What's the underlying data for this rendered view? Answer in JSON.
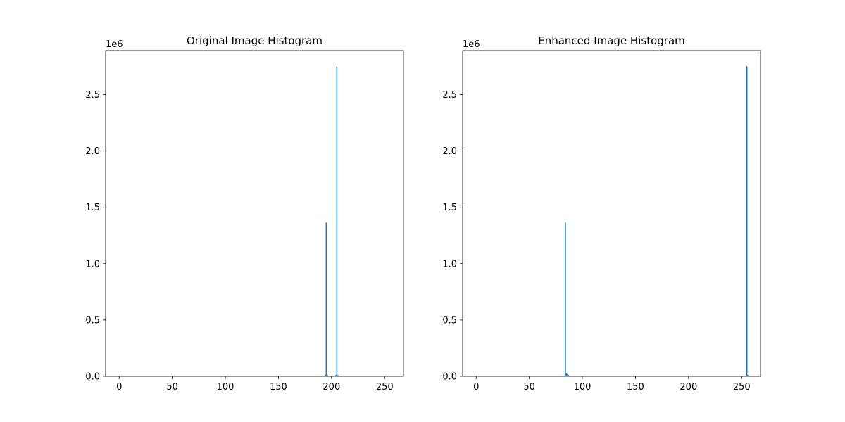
{
  "chart_data": [
    {
      "type": "bar",
      "title": "Original Image Histogram",
      "xlabel": "",
      "ylabel": "",
      "xlim": [
        -12.75,
        267.75
      ],
      "ylim": [
        0,
        2890000
      ],
      "x_ticks": [
        0,
        50,
        100,
        150,
        200,
        250
      ],
      "y_ticks": [
        0,
        500000,
        1000000,
        1500000,
        2000000,
        2500000
      ],
      "y_tick_labels": [
        "0.0",
        "0.5",
        "1.0",
        "1.5",
        "2.0",
        "2.5"
      ],
      "y_offset_label": "1e6",
      "grid": false,
      "color": "#1f77b4",
      "bars": [
        {
          "x": 194,
          "value": 12000
        },
        {
          "x": 195,
          "value": 1365000
        },
        {
          "x": 196,
          "value": 15000
        },
        {
          "x": 204,
          "value": 12000
        },
        {
          "x": 205,
          "value": 2750000
        },
        {
          "x": 206,
          "value": 10000
        }
      ]
    },
    {
      "type": "bar",
      "title": "Enhanced Image Histogram",
      "xlabel": "",
      "ylabel": "",
      "xlim": [
        -12.75,
        267.75
      ],
      "ylim": [
        0,
        2890000
      ],
      "x_ticks": [
        0,
        50,
        100,
        150,
        200,
        250
      ],
      "y_ticks": [
        0,
        500000,
        1000000,
        1500000,
        2000000,
        2500000
      ],
      "y_tick_labels": [
        "0.0",
        "0.5",
        "1.0",
        "1.5",
        "2.0",
        "2.5"
      ],
      "y_offset_label": "1e6",
      "grid": false,
      "color": "#1f77b4",
      "bars": [
        {
          "x": 0,
          "value": 3000
        },
        {
          "x": 84,
          "value": 1365000
        },
        {
          "x": 85,
          "value": 25000
        },
        {
          "x": 86,
          "value": 20000
        },
        {
          "x": 87,
          "value": 12000
        },
        {
          "x": 255,
          "value": 2750000
        },
        {
          "x": 256,
          "value": 10000
        }
      ]
    }
  ]
}
